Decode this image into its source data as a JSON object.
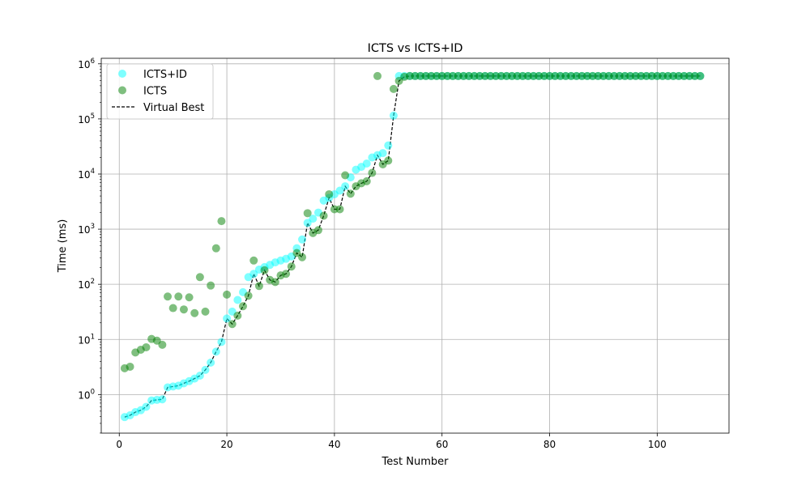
{
  "chart_data": {
    "type": "scatter",
    "title": "ICTS vs ICTS+ID",
    "xlabel": "Test Number",
    "ylabel": "Time (ms)",
    "xlim": [
      -3.35,
      113.35
    ],
    "ylim_log10": [
      -0.7,
      6.1
    ],
    "y_scale": "log",
    "grid": true,
    "legend_placement": "top-left",
    "x_ticks": [
      {
        "value": 0,
        "label": "0"
      },
      {
        "value": 20,
        "label": "20"
      },
      {
        "value": 40,
        "label": "40"
      },
      {
        "value": 60,
        "label": "60"
      },
      {
        "value": 80,
        "label": "80"
      },
      {
        "value": 100,
        "label": "100"
      }
    ],
    "y_ticks": [
      {
        "exp": 0,
        "base": "10",
        "sup": "0"
      },
      {
        "exp": 1,
        "base": "10",
        "sup": "1"
      },
      {
        "exp": 2,
        "base": "10",
        "sup": "2"
      },
      {
        "exp": 3,
        "base": "10",
        "sup": "3"
      },
      {
        "exp": 4,
        "base": "10",
        "sup": "4"
      },
      {
        "exp": 5,
        "base": "10",
        "sup": "5"
      },
      {
        "exp": 6,
        "base": "10",
        "sup": "6"
      }
    ],
    "series": [
      {
        "name": "ICTS+ID",
        "kind": "scatter",
        "color": "#00ffff",
        "alpha": 0.5,
        "x": [
          1,
          2,
          3,
          4,
          5,
          6,
          7,
          8,
          9,
          10,
          11,
          12,
          13,
          14,
          15,
          16,
          17,
          18,
          19,
          20,
          21,
          22,
          23,
          24,
          25,
          26,
          27,
          28,
          29,
          30,
          31,
          32,
          33,
          34,
          35,
          36,
          37,
          38,
          39,
          40,
          41,
          42,
          43,
          44,
          45,
          46,
          47,
          48,
          49,
          50,
          51,
          52,
          53,
          54,
          55,
          56,
          57,
          58,
          59,
          60,
          61,
          62,
          63,
          64,
          65,
          66,
          67,
          68,
          69,
          70,
          71,
          72,
          73,
          74,
          75,
          76,
          77,
          78,
          79,
          80,
          81,
          82,
          83,
          84,
          85,
          86,
          87,
          88,
          89,
          90,
          91,
          92,
          93,
          94,
          95,
          96,
          97,
          98,
          99,
          100,
          101,
          102,
          103,
          104,
          105,
          106,
          107,
          108
        ],
        "y": [
          0.39,
          0.42,
          0.48,
          0.52,
          0.6,
          0.78,
          0.8,
          0.82,
          1.35,
          1.4,
          1.45,
          1.6,
          1.75,
          1.95,
          2.2,
          2.8,
          3.8,
          6,
          9,
          24,
          32,
          52,
          72,
          135,
          155,
          185,
          205,
          225,
          250,
          270,
          290,
          320,
          450,
          650,
          1300,
          1550,
          2000,
          3300,
          3700,
          4300,
          5000,
          6000,
          8700,
          12000,
          13500,
          15500,
          20000,
          22000,
          24000,
          33000,
          115000,
          600000,
          600000,
          600000,
          600000,
          600000,
          600000,
          600000,
          600000,
          600000,
          600000,
          600000,
          600000,
          600000,
          600000,
          600000,
          600000,
          600000,
          600000,
          600000,
          600000,
          600000,
          600000,
          600000,
          600000,
          600000,
          600000,
          600000,
          600000,
          600000,
          600000,
          600000,
          600000,
          600000,
          600000,
          600000,
          600000,
          600000,
          600000,
          600000,
          600000,
          600000,
          600000,
          600000,
          600000,
          600000,
          600000,
          600000,
          600000,
          600000,
          600000,
          600000,
          600000,
          600000,
          600000,
          600000,
          600000,
          600000
        ]
      },
      {
        "name": "ICTS",
        "kind": "scatter",
        "color": "#008000",
        "alpha": 0.5,
        "x": [
          1,
          2,
          3,
          4,
          5,
          6,
          7,
          8,
          9,
          10,
          11,
          12,
          13,
          14,
          15,
          16,
          17,
          18,
          19,
          20,
          21,
          22,
          23,
          24,
          25,
          26,
          27,
          28,
          29,
          30,
          31,
          32,
          33,
          34,
          35,
          36,
          37,
          38,
          39,
          40,
          41,
          42,
          43,
          44,
          45,
          46,
          47,
          48,
          49,
          50,
          51,
          52,
          53,
          54,
          55,
          56,
          57,
          58,
          59,
          60,
          61,
          62,
          63,
          64,
          65,
          66,
          67,
          68,
          69,
          70,
          71,
          72,
          73,
          74,
          75,
          76,
          77,
          78,
          79,
          80,
          81,
          82,
          83,
          84,
          85,
          86,
          87,
          88,
          89,
          90,
          91,
          92,
          93,
          94,
          95,
          96,
          97,
          98,
          99,
          100,
          101,
          102,
          103,
          104,
          105,
          106,
          107,
          108
        ],
        "y": [
          3.0,
          3.2,
          5.8,
          6.5,
          7.2,
          10.2,
          9.5,
          8.0,
          60,
          37,
          60,
          35,
          58,
          30,
          135,
          32,
          95,
          450,
          1400,
          65,
          19,
          27,
          40,
          62,
          270,
          93,
          180,
          120,
          110,
          145,
          155,
          210,
          370,
          310,
          1950,
          850,
          960,
          1750,
          4300,
          2300,
          2300,
          9500,
          4400,
          6000,
          6800,
          7400,
          10500,
          600000,
          15000,
          17500,
          350000,
          490000,
          580000,
          600000,
          600000,
          600000,
          600000,
          600000,
          600000,
          600000,
          600000,
          600000,
          600000,
          600000,
          600000,
          600000,
          600000,
          600000,
          600000,
          600000,
          600000,
          600000,
          600000,
          600000,
          600000,
          600000,
          600000,
          600000,
          600000,
          600000,
          600000,
          600000,
          600000,
          600000,
          600000,
          600000,
          600000,
          600000,
          600000,
          600000,
          600000,
          600000,
          600000,
          600000,
          600000,
          600000,
          600000,
          600000,
          600000,
          600000,
          600000,
          600000,
          600000,
          600000,
          600000,
          600000,
          600000,
          600000
        ]
      },
      {
        "name": "Virtual Best",
        "kind": "line",
        "style": "dashed",
        "color": "#000000",
        "x": [
          1,
          2,
          3,
          4,
          5,
          6,
          7,
          8,
          9,
          10,
          11,
          12,
          13,
          14,
          15,
          16,
          17,
          18,
          19,
          20,
          21,
          22,
          23,
          24,
          25,
          26,
          27,
          28,
          29,
          30,
          31,
          32,
          33,
          34,
          35,
          36,
          37,
          38,
          39,
          40,
          41,
          42,
          43,
          44,
          45,
          46,
          47,
          48,
          49,
          50,
          51,
          52,
          53,
          54,
          55,
          56,
          57,
          58,
          59,
          60,
          61,
          62,
          63,
          64,
          65,
          66,
          67,
          68,
          69,
          70,
          71,
          72,
          73,
          74,
          75,
          76,
          77,
          78,
          79,
          80,
          81,
          82,
          83,
          84,
          85,
          86,
          87,
          88,
          89,
          90,
          91,
          92,
          93,
          94,
          95,
          96,
          97,
          98,
          99,
          100,
          101,
          102,
          103,
          104,
          105,
          106,
          107,
          108
        ],
        "y": [
          0.39,
          0.42,
          0.48,
          0.52,
          0.6,
          0.78,
          0.8,
          0.82,
          1.35,
          1.4,
          1.45,
          1.6,
          1.75,
          1.95,
          2.2,
          2.8,
          3.8,
          6,
          9,
          24,
          19,
          27,
          40,
          62,
          155,
          93,
          180,
          120,
          110,
          145,
          155,
          210,
          370,
          310,
          1300,
          850,
          960,
          1750,
          3700,
          2300,
          2300,
          6000,
          4400,
          6000,
          6800,
          7400,
          10500,
          22000,
          15000,
          17500,
          115000,
          490000,
          580000,
          600000,
          600000,
          600000,
          600000,
          600000,
          600000,
          600000,
          600000,
          600000,
          600000,
          600000,
          600000,
          600000,
          600000,
          600000,
          600000,
          600000,
          600000,
          600000,
          600000,
          600000,
          600000,
          600000,
          600000,
          600000,
          600000,
          600000,
          600000,
          600000,
          600000,
          600000,
          600000,
          600000,
          600000,
          600000,
          600000,
          600000,
          600000,
          600000,
          600000,
          600000,
          600000,
          600000,
          600000,
          600000,
          600000,
          600000,
          600000,
          600000,
          600000,
          600000,
          600000,
          600000,
          600000,
          600000
        ]
      }
    ]
  }
}
